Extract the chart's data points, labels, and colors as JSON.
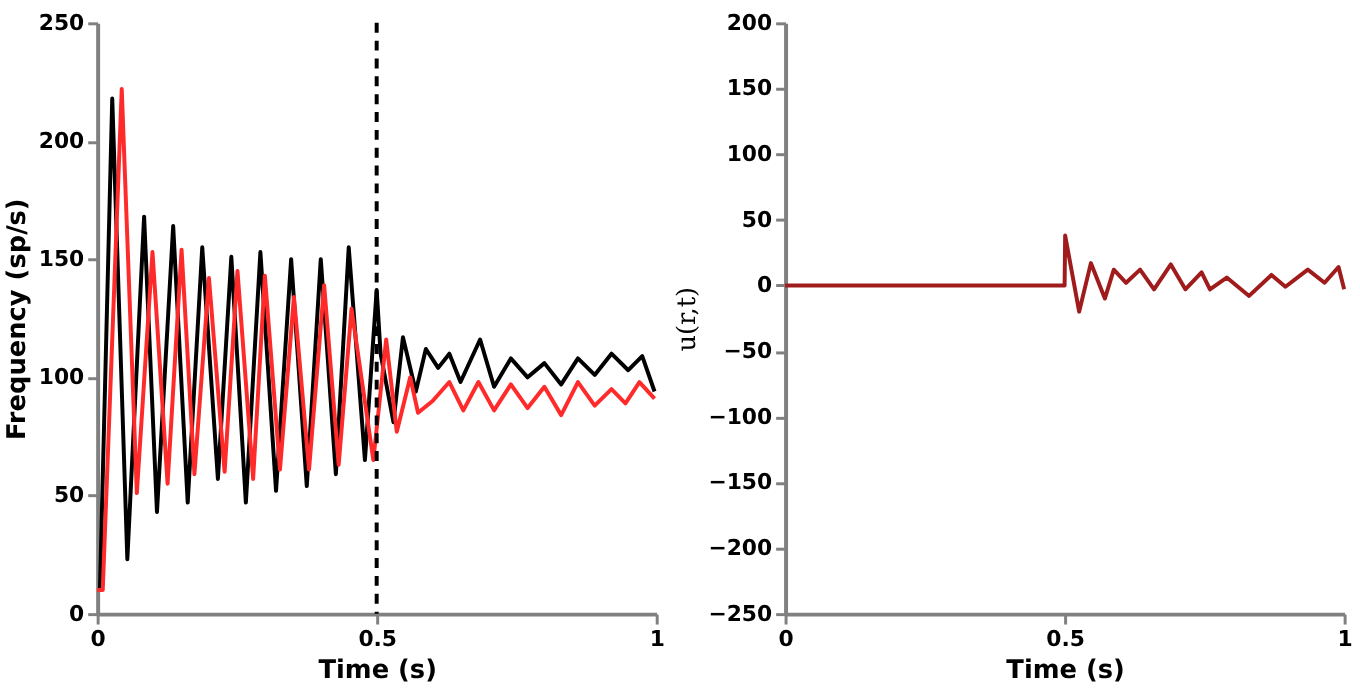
{
  "chart_data": [
    {
      "type": "line",
      "xlabel": "Time (s)",
      "ylabel": "Frequency (sp/s)",
      "xlim": [
        0,
        1
      ],
      "xticks": [
        0,
        0.5,
        1
      ],
      "ylim": [
        0,
        250
      ],
      "yticks": [
        0,
        50,
        100,
        150,
        200,
        250
      ],
      "grid": false,
      "series": [
        {
          "color": "#000000",
          "x": [
            0.005,
            0.027,
            0.054,
            0.084,
            0.107,
            0.136,
            0.162,
            0.188,
            0.216,
            0.24,
            0.266,
            0.292,
            0.32,
            0.347,
            0.375,
            0.4,
            0.427,
            0.45,
            0.479,
            0.5,
            0.507,
            0.53,
            0.547,
            0.57,
            0.588,
            0.61,
            0.63,
            0.65,
            0.685,
            0.71,
            0.74,
            0.77,
            0.8,
            0.83,
            0.86,
            0.89,
            0.92,
            0.95,
            0.975,
            0.997
          ],
          "values": [
            10,
            218,
            23,
            168,
            43,
            164,
            47,
            155,
            57,
            151,
            47,
            153,
            52,
            150,
            54,
            150,
            59,
            155,
            65,
            137,
            110,
            81,
            117,
            94,
            112,
            104,
            110,
            98,
            116,
            96,
            108,
            100,
            106,
            97,
            108,
            101,
            110,
            103,
            109,
            94
          ]
        },
        {
          "color": "#ff2a2a",
          "x": [
            0,
            0.01,
            0.044,
            0.071,
            0.099,
            0.126,
            0.151,
            0.174,
            0.2,
            0.228,
            0.251,
            0.279,
            0.3,
            0.327,
            0.352,
            0.379,
            0.406,
            0.432,
            0.455,
            0.494,
            0.517,
            0.536,
            0.56,
            0.574,
            0.6,
            0.63,
            0.655,
            0.682,
            0.71,
            0.74,
            0.77,
            0.8,
            0.83,
            0.86,
            0.89,
            0.92,
            0.945,
            0.97,
            0.997
          ],
          "values": [
            10,
            10,
            222,
            51,
            153,
            55,
            154,
            59,
            142,
            60,
            145,
            57,
            143,
            61,
            134,
            61,
            139,
            63,
            129,
            65,
            116,
            77,
            100,
            85,
            90,
            98,
            86,
            98,
            86,
            97,
            87,
            96,
            84,
            98,
            88,
            95,
            89,
            98,
            91
          ]
        }
      ],
      "ref_lines": [
        {
          "axis": "x",
          "value": 0.5,
          "color": "#000000",
          "line_style": "dashed"
        }
      ]
    },
    {
      "type": "line",
      "xlabel": "Time (s)",
      "ylabel": "u(r,t)",
      "xlim": [
        0,
        1
      ],
      "xticks": [
        0,
        0.5,
        1
      ],
      "ylim": [
        -250,
        200
      ],
      "yticks": [
        -250,
        -200,
        -150,
        -100,
        -50,
        0,
        50,
        100,
        150,
        200
      ],
      "grid": false,
      "series": [
        {
          "color": "#a01c1c",
          "x": [
            0,
            0.5,
            0.501,
            0.526,
            0.547,
            0.572,
            0.588,
            0.61,
            0.635,
            0.66,
            0.69,
            0.716,
            0.745,
            0.76,
            0.79,
            0.83,
            0.87,
            0.895,
            0.935,
            0.965,
            0.99,
            1.0
          ],
          "values": [
            0,
            0,
            38,
            -20,
            17,
            -10,
            12,
            2,
            12,
            -3,
            16,
            -3,
            10,
            -3,
            6,
            -8,
            8,
            -1,
            12,
            2,
            14,
            -3
          ]
        }
      ]
    }
  ]
}
